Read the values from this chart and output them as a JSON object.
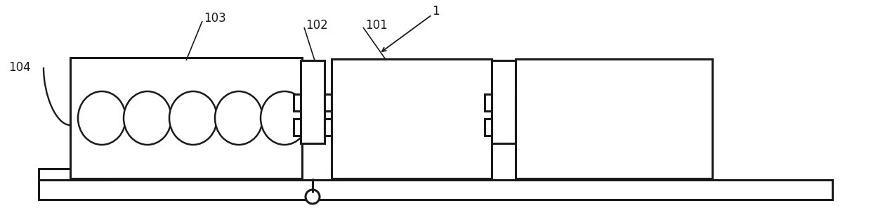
{
  "bg_color": "#ffffff",
  "line_color": "#1a1a1a",
  "lw": 2.2,
  "thin_lw": 1.8,
  "fig_width": 12.4,
  "fig_height": 2.96,
  "dpi": 100
}
